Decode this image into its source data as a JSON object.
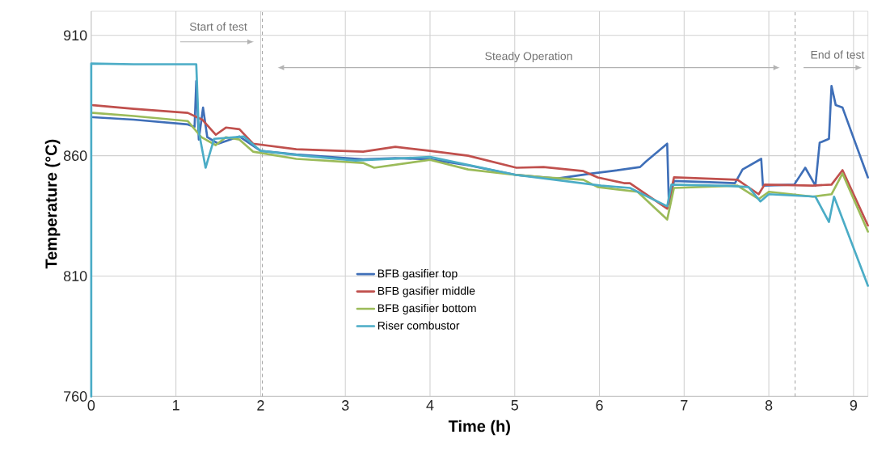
{
  "chart_data": {
    "type": "line",
    "xlabel": "Time (h)",
    "ylabel": "Temperature (°C)",
    "xlim": [
      0,
      9.17
    ],
    "xticks": [
      0,
      1,
      2,
      3,
      4,
      5,
      6,
      7,
      8,
      9
    ],
    "ylim": [
      760,
      920
    ],
    "yticks": [
      760,
      810,
      860,
      910
    ],
    "grid": true,
    "legend": "center",
    "marker": "none",
    "line_style": "solid",
    "series": [
      {
        "name": "BFB gasifier top",
        "color": "#3f6fb8",
        "x": [
          0.02,
          0.5,
          1.14,
          1.22,
          1.24,
          1.27,
          1.32,
          1.37,
          1.5,
          1.75,
          2.0,
          2.42,
          3.21,
          3.59,
          4.0,
          4.45,
          5.02,
          5.5,
          5.91,
          6.14,
          6.48,
          6.55,
          6.8,
          6.82,
          6.88,
          7.3,
          7.6,
          7.69,
          7.91,
          7.93,
          8.3,
          8.43,
          8.55,
          8.6,
          8.71,
          8.74,
          8.79,
          8.87,
          9.17
        ],
        "values": [
          876,
          875,
          873,
          872,
          891,
          866.7,
          880,
          867.7,
          865,
          868,
          862,
          860.5,
          858.5,
          859,
          858.5,
          856,
          852,
          850.5,
          852.6,
          853.6,
          855.3,
          857.6,
          865,
          840,
          849.5,
          849,
          848.6,
          854.3,
          858.7,
          847.6,
          848,
          855,
          847.6,
          865.4,
          867,
          889,
          881,
          880,
          851
        ]
      },
      {
        "name": "BFB gasifier middle",
        "color": "#c0504d",
        "x": [
          0.02,
          0.5,
          1.14,
          1.31,
          1.47,
          1.59,
          1.75,
          1.91,
          2.42,
          3.21,
          3.59,
          4.0,
          4.45,
          5.02,
          5.34,
          5.81,
          5.98,
          6.29,
          6.36,
          6.8,
          6.88,
          7.63,
          7.88,
          7.95,
          8.52,
          8.74,
          8.87,
          9.17
        ],
        "values": [
          881,
          879.5,
          877.8,
          875,
          868.7,
          871.7,
          871,
          865,
          862.7,
          861.7,
          863.7,
          862,
          860,
          855,
          855.3,
          853.6,
          851,
          848.6,
          848.6,
          838,
          851,
          850,
          844,
          848,
          847.6,
          848,
          854,
          831
        ]
      },
      {
        "name": "BFB gasifier bottom",
        "color": "#9bbb59",
        "x": [
          0.02,
          0.5,
          1.14,
          1.3,
          1.47,
          1.59,
          1.75,
          1.91,
          2.42,
          3.21,
          3.34,
          4.0,
          4.45,
          5.02,
          5.34,
          5.81,
          5.98,
          6.45,
          6.8,
          6.88,
          7.63,
          7.88,
          8.0,
          8.52,
          8.74,
          8.87,
          9.17
        ],
        "values": [
          877.8,
          876.5,
          874.4,
          867.7,
          864.4,
          867.7,
          866.7,
          861.7,
          858.7,
          857,
          855,
          858.3,
          854.3,
          852,
          851,
          850,
          847,
          845,
          833.5,
          846.6,
          847.6,
          842,
          845,
          843,
          844,
          852.6,
          828.5
        ]
      },
      {
        "name": "Riser combustor",
        "color": "#4bacc6",
        "x": [
          0,
          0,
          0.5,
          1.24,
          1.27,
          1.35,
          1.45,
          1.8,
          2.0,
          2.5,
          3.12,
          4.0,
          5.02,
          6.02,
          6.36,
          6.8,
          6.85,
          7.5,
          7.76,
          7.9,
          8.0,
          8.55,
          8.71,
          8.77,
          9.17
        ],
        "values": [
          760,
          898.3,
          898,
          898,
          870,
          855,
          867,
          868,
          862,
          860,
          858,
          859.5,
          852,
          847.6,
          846.6,
          839,
          848,
          847.5,
          847,
          841,
          844,
          843,
          832.5,
          843,
          806
        ]
      }
    ],
    "ref_lines": [
      {
        "axis": "x",
        "value": 2.02,
        "color": "#a6a6a6",
        "line_style": "dashed"
      },
      {
        "axis": "x",
        "value": 8.31,
        "color": "#a6a6a6",
        "line_style": "dashed"
      }
    ],
    "annotations": [
      "Start of test",
      "Steady Operation",
      "End of test"
    ]
  }
}
